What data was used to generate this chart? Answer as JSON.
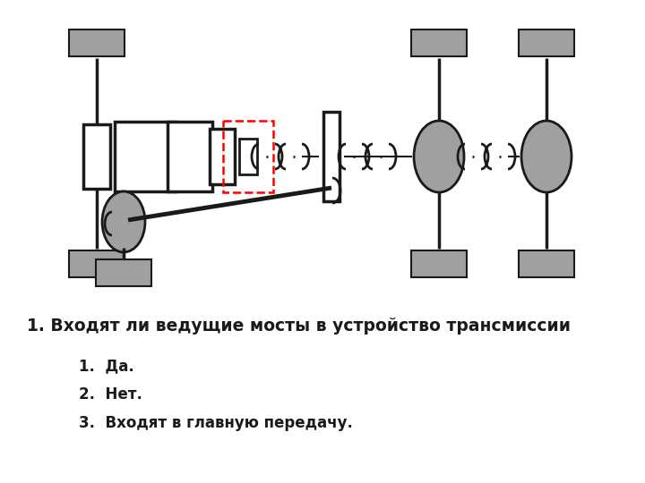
{
  "bg_color": "#ffffff",
  "line_color": "#1a1a1a",
  "gray_color": "#a0a0a0",
  "red_dashed_color": "#ff0000",
  "title": "1. Входят ли ведущие мосты в устройство трансмиссии",
  "answers": [
    "1.  Да.",
    "2.  Нет.",
    "3.  Входят в главную передачу."
  ]
}
